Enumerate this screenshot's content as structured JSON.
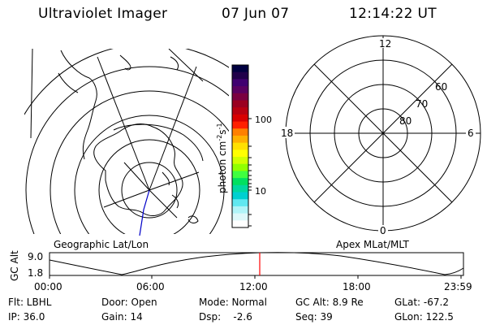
{
  "header": {
    "title": "Ultraviolet Imager",
    "date": "07 Jun 07",
    "time": "12:14:22 UT"
  },
  "geo_map": {
    "caption": "Geographic Lat/Lon"
  },
  "colorbar": {
    "unit_main": "photon cm",
    "unit_exp1": "-2",
    "unit_mid": "s",
    "unit_exp2": "-1",
    "tick_100": "100",
    "tick_10": "10",
    "colors": [
      "#000040",
      "#20004a",
      "#400070",
      "#5a0060",
      "#7a0040",
      "#9a0020",
      "#b80010",
      "#d80000",
      "#ff2000",
      "#ff8000",
      "#ffb000",
      "#ffe000",
      "#ffff00",
      "#d0ff00",
      "#90ff00",
      "#40ff40",
      "#00e060",
      "#00d8a0",
      "#00d0d0",
      "#60e8f0",
      "#b0f4f8",
      "#ddf8fa",
      "#ffffff"
    ]
  },
  "polar_plot": {
    "caption": "Apex MLat/MLT",
    "mlt_top": "12",
    "mlt_left": "18",
    "mlt_right": "6",
    "mlt_bottom": "0",
    "lat_60": "60",
    "lat_70": "70",
    "lat_80": "80"
  },
  "timeline": {
    "axis_title": "GC Alt",
    "y_max": "9.0",
    "y_min": "1.8",
    "ticks": [
      "00:00",
      "06:00",
      "12:00",
      "18:00",
      "23:59"
    ],
    "current_marker_color": "#ff0000"
  },
  "status": {
    "flt": "Flt: LBHL",
    "ip": "IP: 36.0",
    "door": "Door: Open",
    "gain": "Gain: 14",
    "mode": "Mode: Normal",
    "dsp": "Dsp:    -2.6",
    "gc_alt": "GC Alt: 8.9 Re",
    "seq": "Seq: 39",
    "glat": "GLat: -67.2",
    "glon": "GLon: 122.5"
  }
}
